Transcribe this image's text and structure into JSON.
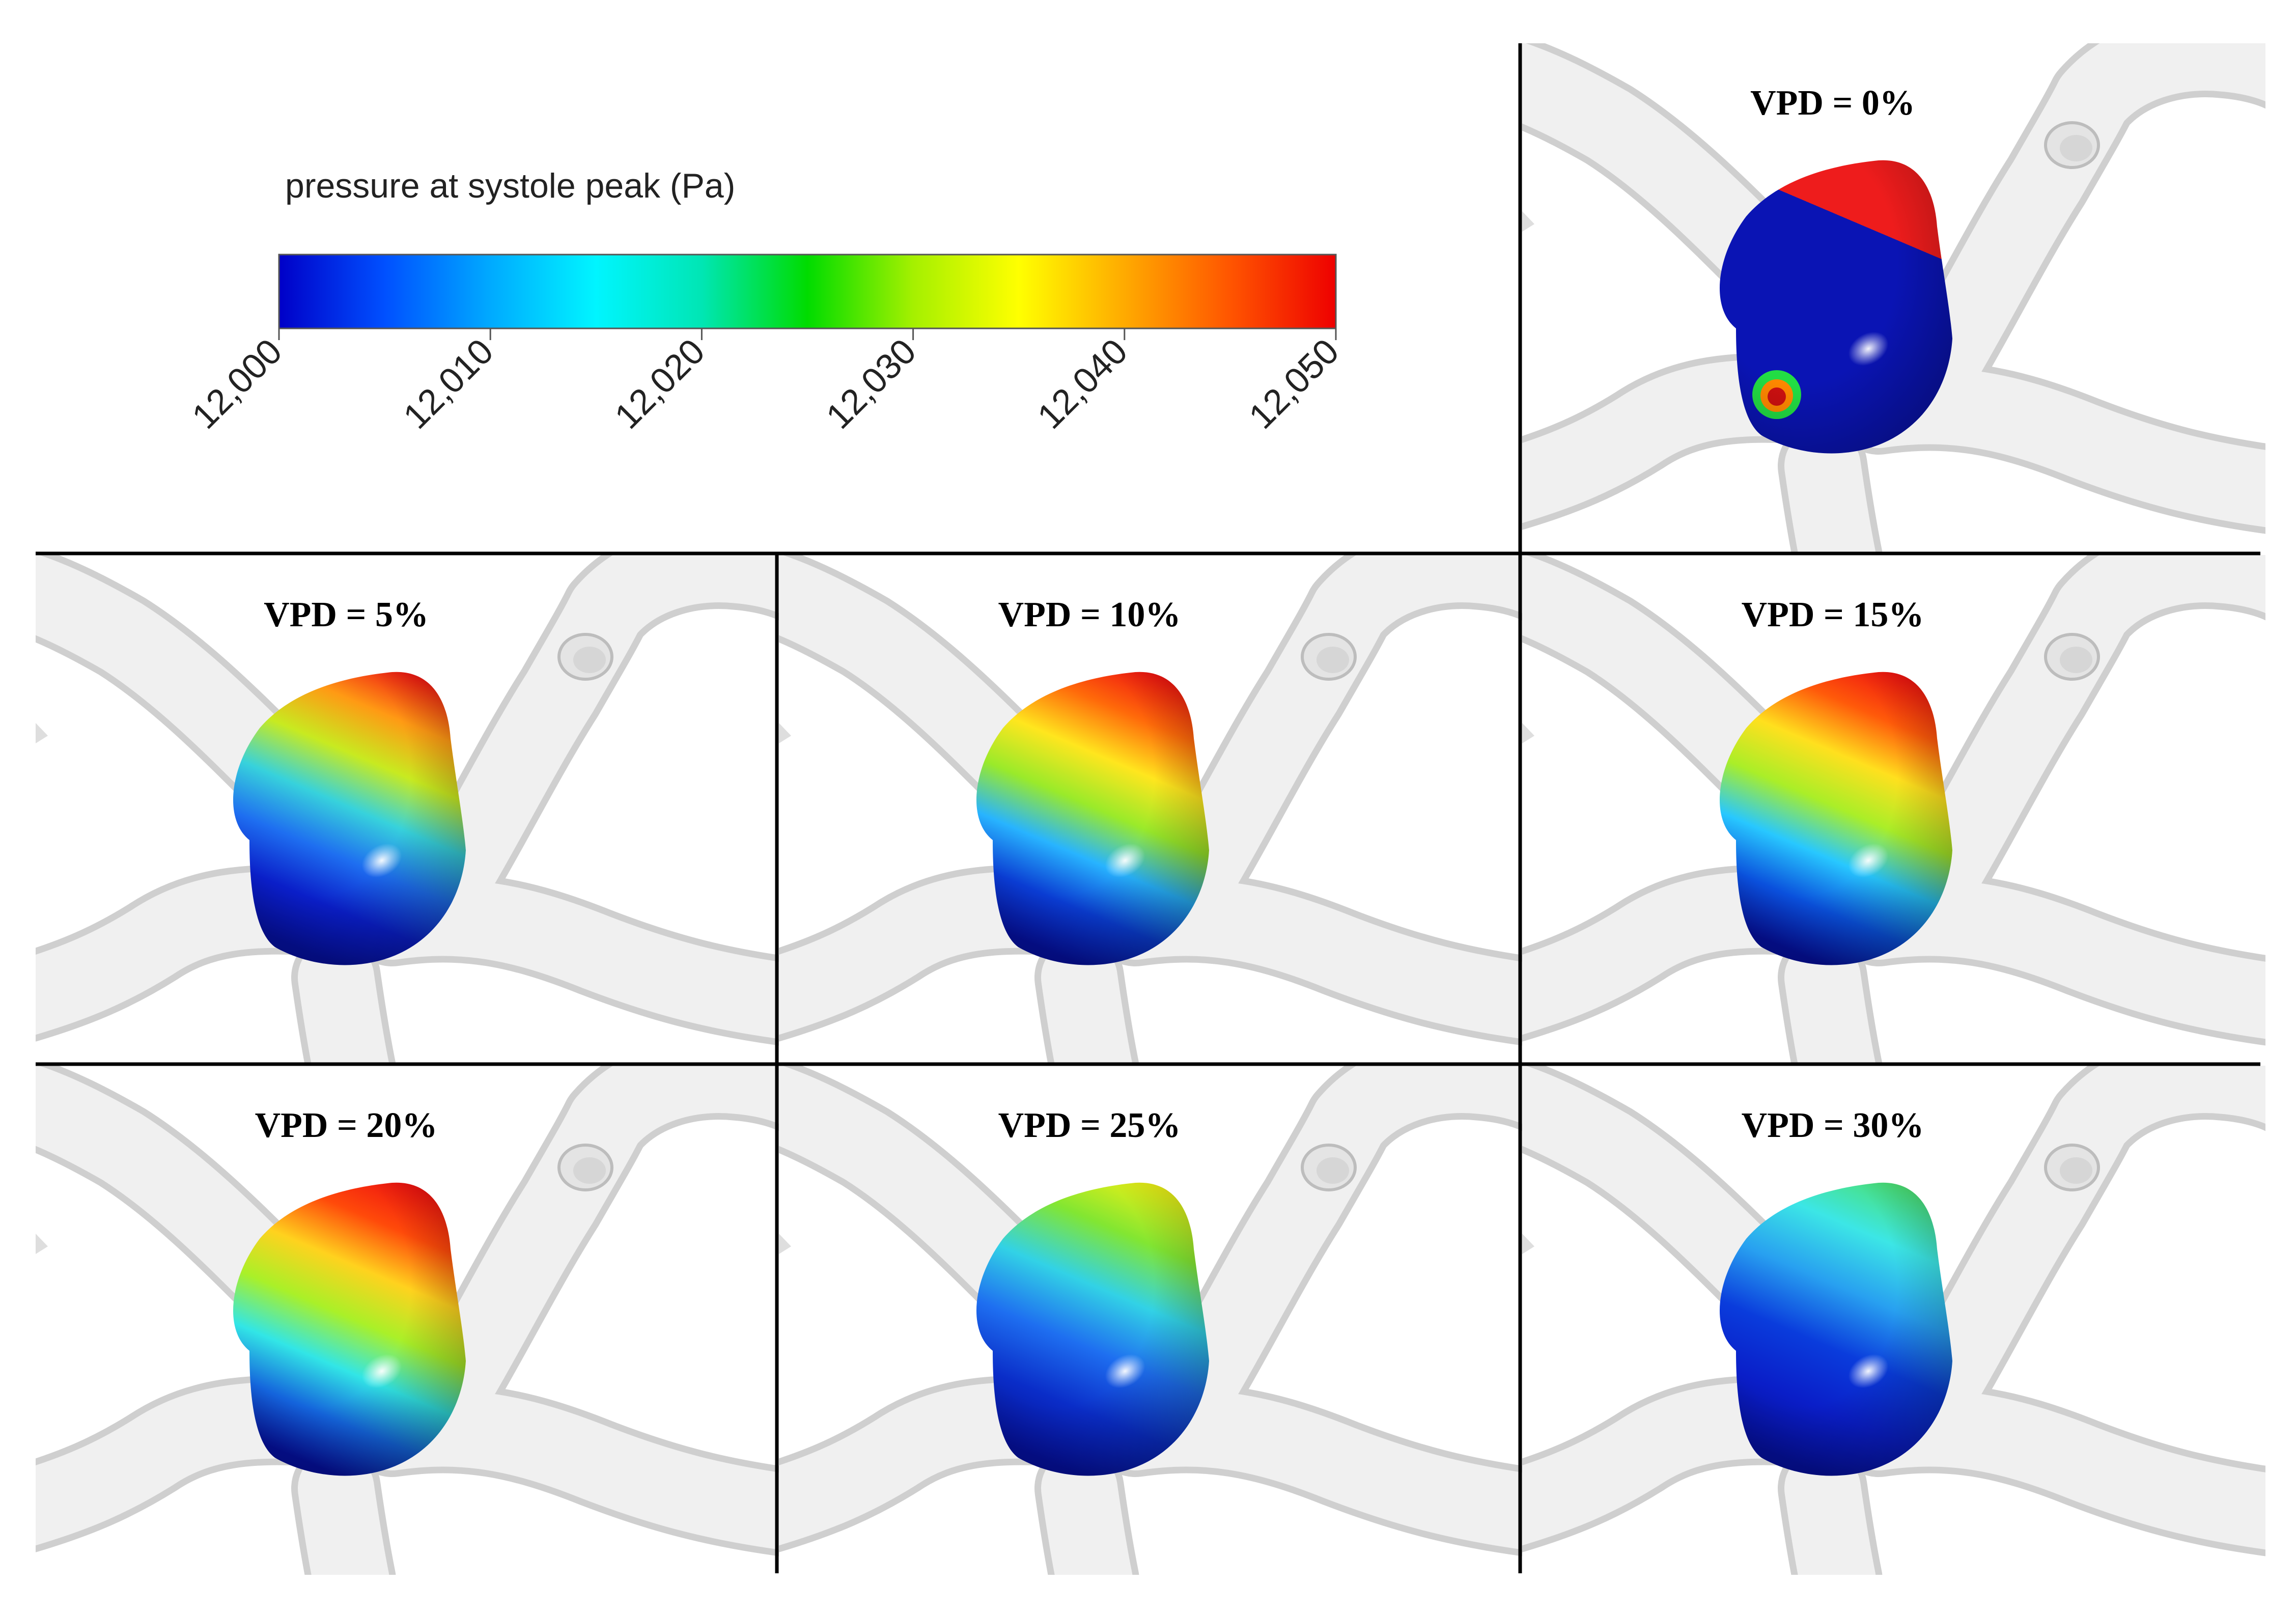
{
  "colorbar": {
    "title": "pressure at systole peak (Pa)",
    "ticks": [
      "12,000",
      "12,010",
      "12,020",
      "12,030",
      "12,040",
      "12,050"
    ],
    "stops": [
      "#0000c8",
      "#0050ff",
      "#00aaff",
      "#00f5ff",
      "#00e6b4",
      "#00dc00",
      "#a5f000",
      "#ffff00",
      "#ffaa00",
      "#ff5500",
      "#ee0000"
    ]
  },
  "panels": [
    {
      "label": "VPD = 0%",
      "stops": [
        "#0a14b4",
        "#0a14b4",
        "#0a14b4",
        "#0a14b4",
        "#ee1c1c"
      ],
      "hotspot": true
    },
    {
      "label": "VPD = 5%",
      "stops": [
        "#050f96",
        "#0a1ec8",
        "#1e6ef0",
        "#37d2dc",
        "#c8ea20",
        "#ff9a14",
        "#ee1212"
      ]
    },
    {
      "label": "VPD = 10%",
      "stops": [
        "#050f96",
        "#0a3cd2",
        "#28b4ff",
        "#9aea2a",
        "#ffe61e",
        "#ff6a0a",
        "#ee1010"
      ]
    },
    {
      "label": "VPD = 15%",
      "stops": [
        "#050f96",
        "#0a50dc",
        "#28c8ff",
        "#aaee28",
        "#ffe01e",
        "#ff5a0a",
        "#ee1010"
      ]
    },
    {
      "label": "VPD = 20%",
      "stops": [
        "#050f96",
        "#1464dc",
        "#32e6e6",
        "#aaf028",
        "#ffd21e",
        "#ff4a0a",
        "#ee1010"
      ]
    },
    {
      "label": "VPD = 25%",
      "stops": [
        "#050f96",
        "#0a2dc8",
        "#1e6ef0",
        "#32d2e6",
        "#82e632",
        "#f0f014"
      ]
    },
    {
      "label": "VPD = 30%",
      "stops": [
        "#050f96",
        "#0a1ec8",
        "#0a3cdc",
        "#28a0f0",
        "#3ce6e6",
        "#4be06e"
      ]
    }
  ]
}
